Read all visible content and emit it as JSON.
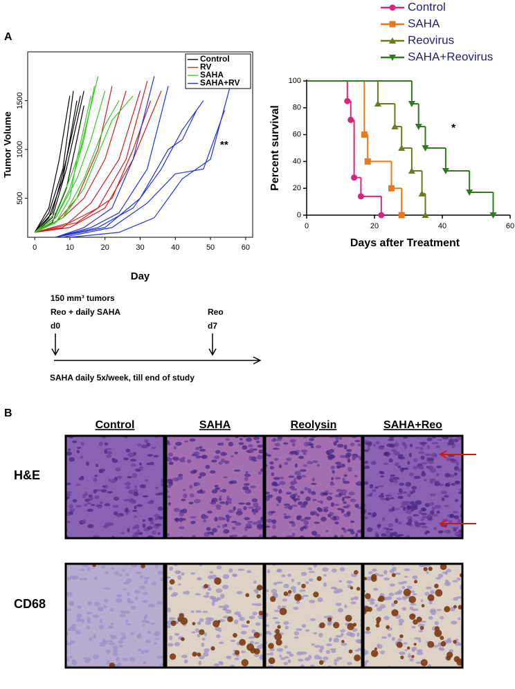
{
  "figure": {
    "panels": [
      "A",
      "B"
    ]
  },
  "chart_data": [
    {
      "type": "line",
      "xlabel": "Day",
      "ylabel": "Tumor Volume",
      "xlim": [
        -2,
        62
      ],
      "ylim": [
        100,
        2000
      ],
      "xticks": [
        0,
        10,
        20,
        30,
        40,
        50,
        60
      ],
      "yticks": [
        500,
        1000,
        1500
      ],
      "legend": "top-right",
      "annotation": "**",
      "series": [
        {
          "name": "Control",
          "color": "#000000",
          "curves": [
            {
              "x": [
                0,
                4,
                7,
                10
              ],
              "values": [
                150,
                400,
                900,
                1550
              ]
            },
            {
              "x": [
                0,
                4,
                8,
                11
              ],
              "values": [
                150,
                350,
                800,
                1600
              ]
            },
            {
              "x": [
                0,
                5,
                9,
                13
              ],
              "values": [
                150,
                350,
                900,
                1550
              ]
            },
            {
              "x": [
                0,
                5,
                9,
                14
              ],
              "values": [
                150,
                300,
                800,
                1600
              ]
            },
            {
              "x": [
                0,
                4,
                8,
                12
              ],
              "values": [
                150,
                300,
                700,
                1500
              ]
            },
            {
              "x": [
                0,
                5,
                9,
                12,
                14
              ],
              "values": [
                150,
                250,
                600,
                1100,
                1450
              ]
            }
          ]
        },
        {
          "name": "RV",
          "color": "#cc1f1f",
          "curves": [
            {
              "x": [
                0,
                6,
                12,
                18,
                22
              ],
              "values": [
                150,
                250,
                500,
                1000,
                1650
              ]
            },
            {
              "x": [
                0,
                8,
                14,
                20,
                26
              ],
              "values": [
                150,
                300,
                500,
                900,
                1600
              ]
            },
            {
              "x": [
                0,
                8,
                16,
                24,
                30
              ],
              "values": [
                150,
                200,
                450,
                900,
                1600
              ]
            },
            {
              "x": [
                0,
                10,
                18,
                26,
                32
              ],
              "values": [
                150,
                250,
                400,
                900,
                1700
              ]
            },
            {
              "x": [
                0,
                10,
                20,
                28,
                36
              ],
              "values": [
                150,
                200,
                400,
                900,
                1600
              ]
            },
            {
              "x": [
                0,
                12,
                22,
                28,
                33
              ],
              "values": [
                150,
                250,
                500,
                1000,
                1500
              ]
            }
          ]
        },
        {
          "name": "SAHA",
          "color": "#33cc1f",
          "curves": [
            {
              "x": [
                0,
                6,
                10,
                13,
                18
              ],
              "values": [
                150,
                350,
                700,
                1000,
                1750
              ]
            },
            {
              "x": [
                0,
                6,
                10,
                14,
                17
              ],
              "values": [
                150,
                300,
                600,
                1100,
                1650
              ]
            },
            {
              "x": [
                0,
                6,
                12,
                16,
                20
              ],
              "values": [
                150,
                300,
                700,
                1100,
                1600
              ]
            },
            {
              "x": [
                0,
                8,
                14,
                20,
                24
              ],
              "values": [
                150,
                300,
                700,
                1250,
                1500
              ]
            },
            {
              "x": [
                0,
                8,
                14,
                22,
                28
              ],
              "values": [
                150,
                300,
                600,
                1300,
                1550
              ]
            },
            {
              "x": [
                0,
                6,
                10,
                12,
                16
              ],
              "values": [
                150,
                250,
                500,
                900,
                1550
              ]
            }
          ]
        },
        {
          "name": "SAHA+RV",
          "color": "#1f2fe0",
          "curves": [
            {
              "x": [
                6,
                14,
                22,
                28,
                34
              ],
              "values": [
                100,
                200,
                400,
                900,
                1750
              ]
            },
            {
              "x": [
                6,
                16,
                24,
                32,
                38
              ],
              "values": [
                100,
                200,
                350,
                800,
                1650
              ]
            },
            {
              "x": [
                6,
                18,
                28,
                36,
                42,
                48
              ],
              "values": [
                100,
                200,
                400,
                800,
                1200,
                1500
              ]
            },
            {
              "x": [
                6,
                20,
                30,
                38,
                42,
                46
              ],
              "values": [
                100,
                200,
                500,
                1000,
                1100,
                1400
              ]
            },
            {
              "x": [
                8,
                22,
                32,
                40,
                48,
                54
              ],
              "values": [
                100,
                200,
                450,
                750,
                800,
                1400
              ]
            },
            {
              "x": [
                10,
                24,
                34,
                42,
                50,
                56
              ],
              "values": [
                100,
                150,
                300,
                700,
                900,
                1700
              ]
            }
          ]
        }
      ]
    },
    {
      "type": "survival",
      "xlabel": "Days after Treatment",
      "ylabel": "Percent survival",
      "xlim": [
        0,
        60
      ],
      "ylim": [
        0,
        100
      ],
      "xticks": [
        0,
        20,
        40,
        60
      ],
      "yticks": [
        0,
        20,
        40,
        60,
        80,
        100
      ],
      "annotation": "*",
      "series": [
        {
          "name": "Control",
          "color": "#d6267a",
          "marker": "circle",
          "x": [
            0,
            12,
            13,
            14,
            16,
            22
          ],
          "values": [
            100,
            85,
            71,
            28,
            14,
            0
          ]
        },
        {
          "name": "SAHA",
          "color": "#e8771e",
          "marker": "square",
          "x": [
            0,
            17,
            18,
            25,
            28
          ],
          "values": [
            100,
            60,
            40,
            20,
            0
          ]
        },
        {
          "name": "Reovirus",
          "color": "#6b7a1a",
          "marker": "triangle-up",
          "x": [
            0,
            21,
            26,
            28,
            31,
            34,
            35
          ],
          "values": [
            100,
            83,
            66,
            50,
            33,
            16,
            0
          ]
        },
        {
          "name": "SAHA+Reovirus",
          "color": "#2e7a1e",
          "marker": "triangle-down",
          "x": [
            0,
            31,
            33,
            35,
            41,
            48,
            55
          ],
          "values": [
            100,
            83,
            66,
            50,
            33,
            17,
            0
          ]
        }
      ]
    }
  ],
  "timeline": {
    "start": [
      "150 mm³ tumors",
      "Reo + daily SAHA",
      "d0"
    ],
    "second": [
      "Reo",
      "d7"
    ],
    "note": "SAHA daily 5x/week, till end of study"
  },
  "histology": {
    "columns": [
      "Control",
      "SAHA",
      "Reolysin",
      "SAHA+Reo"
    ],
    "rows": [
      "H&E",
      "CD68"
    ]
  }
}
